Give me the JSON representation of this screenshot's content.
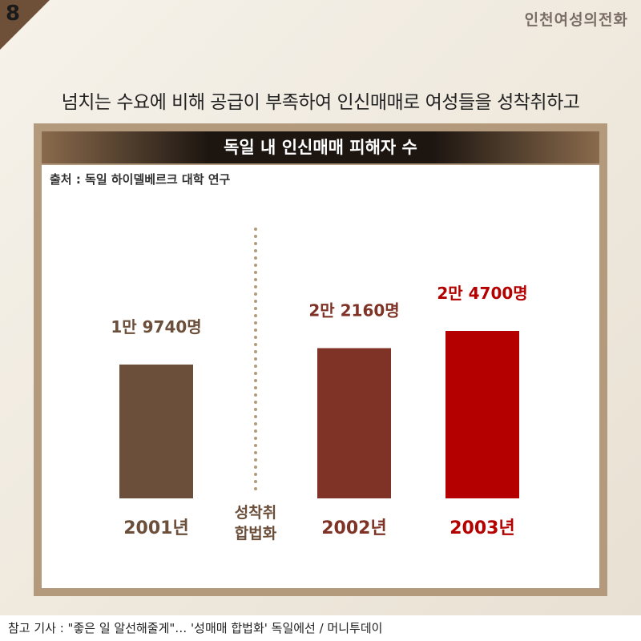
{
  "card_number": "8",
  "brand": "인천여성의전화",
  "headline": "넘치는 수요에 비해 공급이 부족하여 인신매매로 여성들을 성착취하고",
  "footer": "참고 기사 : \"좋은 일 알선해줄게\"… '성매매 합법화' 독일에선 / 머니투데이",
  "annotation": {
    "line1": "성착취",
    "line2": "합법화"
  },
  "colors": {
    "brown": "#6b4f3a",
    "maroon": "#7f3326",
    "red": "#b50000",
    "dots": "#b39a7c"
  },
  "chart_data": {
    "type": "bar",
    "title": "독일 내 인신매매 피해자 수",
    "source": "출처 : 독일 하이델베르크 대학 연구",
    "categories": [
      "2001년",
      "2002년",
      "2003년"
    ],
    "values": [
      19740,
      22160,
      24700
    ],
    "value_labels": [
      "1만 9740명",
      "2만 2160명",
      "2만 4700명"
    ],
    "bar_colors": [
      "#6b4f3a",
      "#7f3326",
      "#b50000"
    ],
    "label_colors": [
      "#6b4f3a",
      "#7f3326",
      "#b50000"
    ]
  }
}
